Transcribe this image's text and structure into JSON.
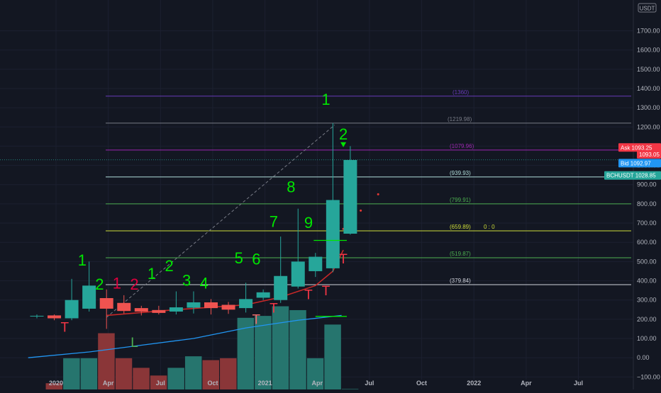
{
  "chart_data": {
    "type": "candlestick",
    "symbol": "BCHUSDT",
    "currency": "USDT",
    "ylim": [
      -165,
      1860
    ],
    "yticks": [
      -100,
      0,
      100,
      200,
      300,
      400,
      500,
      600,
      700,
      800,
      900,
      1000,
      1100,
      1200,
      1300,
      1400,
      1500,
      1600,
      1700
    ],
    "ytick_labels": [
      "−100.00",
      "0.00",
      "100.00",
      "200.00",
      "300.00",
      "400.00",
      "500.00",
      "600.00",
      "700.00",
      "800.00",
      "900.00",
      "1000.00",
      "1100.00",
      "1200.00",
      "1300.00",
      "1400.00",
      "1500.00",
      "1600.00",
      "1700.00"
    ],
    "xticks": [
      {
        "label": "2020",
        "t": 1.1
      },
      {
        "label": "Apr",
        "t": 4.1
      },
      {
        "label": "Jul",
        "t": 7.1
      },
      {
        "label": "Oct",
        "t": 10.1
      },
      {
        "label": "2021",
        "t": 13.1
      },
      {
        "label": "Apr",
        "t": 16.1
      },
      {
        "label": "Jul",
        "t": 19.1
      },
      {
        "label": "Oct",
        "t": 22.1
      },
      {
        "label": "2022",
        "t": 25.1
      },
      {
        "label": "Apr",
        "t": 28.1
      },
      {
        "label": "Jul",
        "t": 31.1
      }
    ],
    "candles": [
      {
        "t": 0,
        "o": 215,
        "h": 225,
        "l": 205,
        "c": 218
      },
      {
        "t": 1,
        "o": 220,
        "h": 225,
        "l": 195,
        "c": 205
      },
      {
        "t": 2,
        "o": 205,
        "h": 410,
        "l": 195,
        "c": 300
      },
      {
        "t": 3,
        "o": 255,
        "h": 500,
        "l": 240,
        "c": 375
      },
      {
        "t": 4,
        "o": 310,
        "h": 355,
        "l": 150,
        "c": 255
      },
      {
        "t": 5,
        "o": 285,
        "h": 325,
        "l": 230,
        "c": 243
      },
      {
        "t": 6,
        "o": 258,
        "h": 270,
        "l": 220,
        "c": 240
      },
      {
        "t": 7,
        "o": 248,
        "h": 270,
        "l": 225,
        "c": 233
      },
      {
        "t": 8,
        "o": 240,
        "h": 345,
        "l": 225,
        "c": 262
      },
      {
        "t": 9,
        "o": 260,
        "h": 345,
        "l": 230,
        "c": 288
      },
      {
        "t": 10,
        "o": 288,
        "h": 305,
        "l": 225,
        "c": 258
      },
      {
        "t": 11,
        "o": 275,
        "h": 290,
        "l": 228,
        "c": 250
      },
      {
        "t": 12,
        "o": 258,
        "h": 390,
        "l": 235,
        "c": 305
      },
      {
        "t": 13,
        "o": 312,
        "h": 355,
        "l": 300,
        "c": 340
      },
      {
        "t": 14,
        "o": 300,
        "h": 630,
        "l": 285,
        "c": 425
      },
      {
        "t": 15,
        "o": 370,
        "h": 775,
        "l": 360,
        "c": 500
      },
      {
        "t": 16,
        "o": 450,
        "h": 545,
        "l": 420,
        "c": 525
      },
      {
        "t": 17,
        "o": 465,
        "h": 1220,
        "l": 445,
        "c": 820
      },
      {
        "t": 18,
        "o": 645,
        "h": 1100,
        "l": 640,
        "c": 1028
      }
    ],
    "volume": [
      {
        "t": 0,
        "v": 20,
        "up": true
      },
      {
        "t": 1,
        "v": 70,
        "up": false
      },
      {
        "t": 2,
        "v": 200,
        "up": true
      },
      {
        "t": 3,
        "v": 200,
        "up": true
      },
      {
        "t": 4,
        "v": 330,
        "up": false
      },
      {
        "t": 5,
        "v": 200,
        "up": false
      },
      {
        "t": 6,
        "v": 150,
        "up": false
      },
      {
        "t": 7,
        "v": 110,
        "up": false
      },
      {
        "t": 8,
        "v": 150,
        "up": true
      },
      {
        "t": 9,
        "v": 210,
        "up": true
      },
      {
        "t": 10,
        "v": 190,
        "up": false
      },
      {
        "t": 11,
        "v": 200,
        "up": false
      },
      {
        "t": 12,
        "v": 410,
        "up": true
      },
      {
        "t": 13,
        "v": 420,
        "up": true
      },
      {
        "t": 14,
        "v": 470,
        "up": true
      },
      {
        "t": 15,
        "v": 450,
        "up": true
      },
      {
        "t": 16,
        "v": 200,
        "up": true
      },
      {
        "t": 17,
        "v": 375,
        "up": true
      },
      {
        "t": 18,
        "v": 40,
        "up": true
      }
    ],
    "fib_levels": [
      {
        "value": 379.84,
        "label": "(379.84)",
        "color": "#d1d4dc"
      },
      {
        "value": 519.87,
        "label": "(519.87)",
        "color": "#4caf50"
      },
      {
        "value": 659.89,
        "label": "(659.89)",
        "color": "#cddc39",
        "extra": "0 : 0"
      },
      {
        "value": 799.91,
        "label": "(799.91)",
        "color": "#4caf50"
      },
      {
        "value": 939.93,
        "label": "(939.93)",
        "color": "#b2dfdb"
      },
      {
        "value": 1079.96,
        "label": "(1079.96)",
        "color": "#9c27b0"
      },
      {
        "value": 1219.98,
        "label": "(1219.98)",
        "color": "#787b86"
      },
      {
        "value": 1360,
        "label": "(1360)",
        "color": "#673ab7"
      }
    ],
    "price_tags": [
      {
        "label": "Ask",
        "value": "1093.25",
        "y": 1093.25,
        "color": "#f23645"
      },
      {
        "label": "",
        "value": "1093.05",
        "y": 1058,
        "color": "#f23645"
      },
      {
        "label": "Bid",
        "value": "1092.97",
        "y": 1012,
        "color": "#2196f3"
      },
      {
        "label": "BCHUSDT",
        "value": "1028.85",
        "y": 948,
        "color": "#26a69a"
      }
    ],
    "green_sequence": [
      {
        "text": "1",
        "t": 2.6,
        "y": 480
      },
      {
        "text": "2",
        "t": 3.6,
        "y": 355
      },
      {
        "text": "1",
        "t": 6.6,
        "y": 410
      },
      {
        "text": "2",
        "t": 7.6,
        "y": 450
      },
      {
        "text": "3",
        "t": 8.6,
        "y": 375
      },
      {
        "text": "4",
        "t": 9.6,
        "y": 360
      },
      {
        "text": "5",
        "t": 11.6,
        "y": 490
      },
      {
        "text": "6",
        "t": 12.6,
        "y": 485
      },
      {
        "text": "7",
        "t": 13.6,
        "y": 680
      },
      {
        "text": "8",
        "t": 14.6,
        "y": 860
      },
      {
        "text": "9",
        "t": 15.6,
        "y": 675
      },
      {
        "text": "1",
        "t": 16.6,
        "y": 1315
      },
      {
        "text": "2",
        "t": 17.6,
        "y": 1135
      }
    ],
    "red_sequence": [
      {
        "text": "1",
        "t": 4.6,
        "y": 360
      },
      {
        "text": "2",
        "t": 5.6,
        "y": 355
      }
    ],
    "t_markers": [
      {
        "text": "T",
        "t": 1.6,
        "y": 135,
        "color": "#f23645"
      },
      {
        "text": "T",
        "t": 12.6,
        "y": 175,
        "color": "#ef6c6c"
      },
      {
        "text": "T",
        "t": 13.6,
        "y": 235,
        "color": "#f23645"
      },
      {
        "text": "T",
        "t": 15.6,
        "y": 305,
        "color": "#f23645"
      },
      {
        "text": "T",
        "t": 16.6,
        "y": 325,
        "color": "#f23645"
      },
      {
        "text": "T",
        "t": 17.6,
        "y": 490,
        "color": "#f23645"
      }
    ],
    "l_marker": {
      "text": "L",
      "t": 5.6,
      "y": 55,
      "color": "#4caf50"
    },
    "trend_curve": [
      [
        -0.5,
        0
      ],
      [
        3,
        30
      ],
      [
        6,
        65
      ],
      [
        9,
        100
      ],
      [
        12,
        155
      ],
      [
        15,
        195
      ],
      [
        17.5,
        220
      ]
    ],
    "trend_line": [
      [
        4,
        210
      ],
      [
        17.1,
        1210
      ]
    ],
    "red_ma": [
      [
        4,
        220
      ],
      [
        8,
        250
      ],
      [
        12,
        275
      ],
      [
        14,
        315
      ],
      [
        16,
        375
      ],
      [
        17,
        450
      ],
      [
        17.6,
        560
      ]
    ],
    "future_dots": [
      [
        19.6,
        850
      ],
      [
        18.6,
        765
      ],
      [
        17.6,
        670
      ]
    ],
    "overlay_colors": {
      "up": "#26a69a",
      "down": "#ef5350",
      "vol_up": "#26756e",
      "vol_down": "#8a3638",
      "seq_green": "#00e600",
      "seq_red": "#e0003e",
      "curve": "#2196f3",
      "trend": "#787b86",
      "ma_red": "#c62828"
    }
  }
}
